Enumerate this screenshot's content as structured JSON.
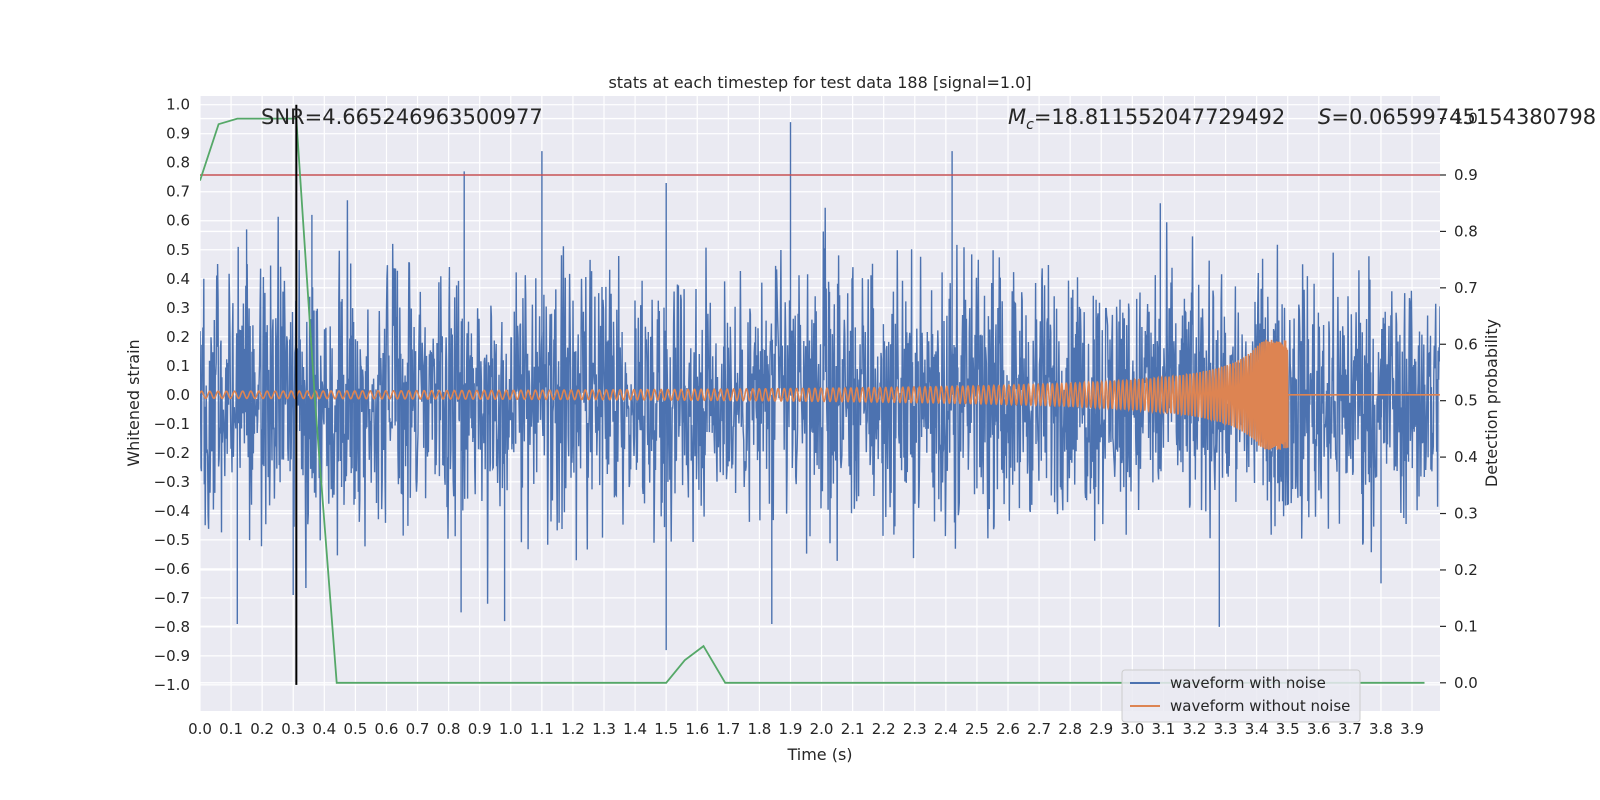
{
  "chart_data": {
    "type": "line",
    "title": "stats at each timestep for test data 188 [signal=1.0]",
    "xlabel": "Time (s)",
    "ylabel": "Whitened strain",
    "ylabel_right": "Detection probability",
    "xlim": [
      0.0,
      3.99
    ],
    "ylim": [
      -1.09,
      1.03
    ],
    "ylim_right": [
      -0.05,
      1.04
    ],
    "x_ticks": [
      "0.0",
      "0.1",
      "0.2",
      "0.3",
      "0.4",
      "0.5",
      "0.6",
      "0.7",
      "0.8",
      "0.9",
      "1.0",
      "1.1",
      "1.2",
      "1.3",
      "1.4",
      "1.5",
      "1.6",
      "1.7",
      "1.8",
      "1.9",
      "2.0",
      "2.1",
      "2.2",
      "2.3",
      "2.4",
      "2.5",
      "2.6",
      "2.7",
      "2.8",
      "2.9",
      "3.0",
      "3.1",
      "3.2",
      "3.3",
      "3.4",
      "3.5",
      "3.6",
      "3.7",
      "3.8",
      "3.9"
    ],
    "y_ticks": [
      "1.0",
      "0.9",
      "0.8",
      "0.7",
      "0.6",
      "0.5",
      "0.4",
      "0.3",
      "0.2",
      "0.1",
      "0.0",
      "−0.1",
      "−0.2",
      "−0.3",
      "−0.4",
      "−0.5",
      "−0.6",
      "−0.7",
      "−0.8",
      "−0.9",
      "−1.0"
    ],
    "y_ticks_right": [
      "1.0",
      "0.9",
      "0.8",
      "0.7",
      "0.6",
      "0.5",
      "0.4",
      "0.3",
      "0.2",
      "0.1",
      "0.0"
    ],
    "grid": true,
    "legend_position": "lower-right",
    "annotations": {
      "snr": "SNR=4.665246963500977",
      "mc_symbol": "M",
      "mc_sub": "c",
      "mc_value": "=18.811552047729492",
      "s_symbol": "S",
      "s_value": "=0.06599745154380798"
    },
    "series": [
      {
        "name": "waveform with noise",
        "color": "#4c72b0",
        "axis": "left",
        "style": "dense noise, amplitude about ±0.55 with peaks to ±0.94",
        "peaks": [
          {
            "x": 0.15,
            "y": 0.57
          },
          {
            "x": 0.36,
            "y": 0.62
          },
          {
            "x": 0.85,
            "y": 0.77
          },
          {
            "x": 1.1,
            "y": 0.84
          },
          {
            "x": 1.5,
            "y": 0.73
          },
          {
            "x": 1.9,
            "y": 0.94
          },
          {
            "x": 2.42,
            "y": 0.84
          },
          {
            "x": 3.09,
            "y": 0.66
          },
          {
            "x": 0.12,
            "y": -0.79
          },
          {
            "x": 0.3,
            "y": -0.69
          },
          {
            "x": 0.84,
            "y": -0.75
          },
          {
            "x": 0.98,
            "y": -0.78
          },
          {
            "x": 1.5,
            "y": -0.88
          },
          {
            "x": 1.84,
            "y": -0.79
          },
          {
            "x": 3.28,
            "y": -0.8
          },
          {
            "x": 3.8,
            "y": -0.65
          }
        ]
      },
      {
        "name": "waveform without noise",
        "color": "#dd8452",
        "axis": "left",
        "style": "chirp with growing amplitude, merger near 3.5 s then flat at 0",
        "merger_time": 3.5,
        "max_amplitude": 0.19
      },
      {
        "name": "",
        "color": "#55a868",
        "axis": "right",
        "x": [
          0.0,
          0.06,
          0.12,
          0.18,
          0.24,
          0.31,
          0.37,
          0.44,
          0.5,
          0.56,
          0.62,
          0.69,
          0.75,
          0.81,
          0.87,
          0.94,
          1.0,
          1.06,
          1.12,
          1.19,
          1.25,
          1.31,
          1.37,
          1.44,
          1.5,
          1.56,
          1.62,
          1.69,
          1.75,
          1.81,
          1.87,
          1.94,
          2.0,
          2.06,
          2.12,
          2.19,
          2.25,
          2.31,
          2.37,
          2.44,
          2.5,
          2.56,
          2.62,
          2.69,
          2.75,
          2.81,
          2.87,
          2.94,
          3.0,
          3.06,
          3.12,
          3.19,
          3.25,
          3.31,
          3.37,
          3.44,
          3.5,
          3.56,
          3.62,
          3.69,
          3.75,
          3.81,
          3.87,
          3.94
        ],
        "y": [
          0.89,
          0.99,
          1.0,
          1.0,
          1.0,
          1.0,
          0.5,
          0.0,
          0.0,
          0.0,
          0.0,
          0.0,
          0.0,
          0.0,
          0.0,
          0.0,
          0.0,
          0.0,
          0.0,
          0.0,
          0.0,
          0.0,
          0.0,
          0.0,
          0.0,
          0.04,
          0.065,
          0.0,
          0.0,
          0.0,
          0.0,
          0.0,
          0.0,
          0.0,
          0.0,
          0.0,
          0.0,
          0.0,
          0.0,
          0.0,
          0.0,
          0.0,
          0.0,
          0.0,
          0.0,
          0.0,
          0.0,
          0.0,
          0.0,
          0.0,
          0.0,
          0.0,
          0.0,
          0.0,
          0.0,
          0.0,
          0.0,
          0.0,
          0.0,
          0.0,
          0.0,
          0.0,
          0.0,
          0.0
        ]
      }
    ],
    "threshold": {
      "axis": "right",
      "y": 0.9,
      "color": "#c44e52"
    },
    "vertical_marker": {
      "x": 0.31,
      "y_from": -1.0,
      "y_to": 1.0,
      "color": "#000000"
    }
  }
}
